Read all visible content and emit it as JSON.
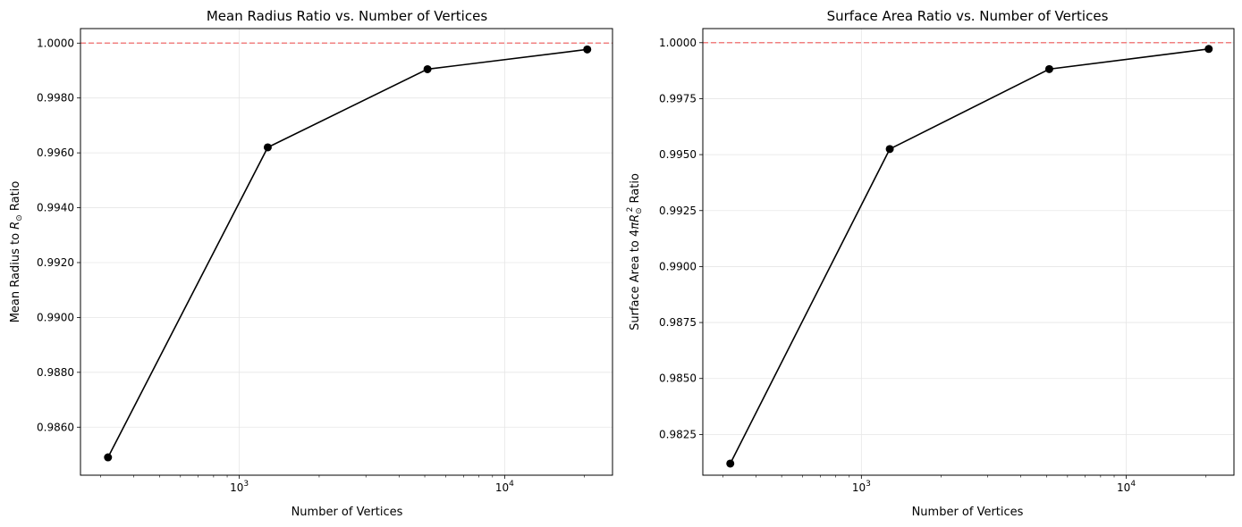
{
  "chart_data": [
    {
      "type": "line",
      "title": "Mean Radius Ratio vs. Number of Vertices",
      "xlabel": "Number of Vertices",
      "ylabel_prefix": "Mean Radius to ",
      "ylabel_math": "R",
      "ylabel_sub": "⊙",
      "ylabel_suffix": " Ratio",
      "x_scale": "log",
      "xlim": [
        252,
        25500
      ],
      "ylim": [
        0.98425,
        1.00053
      ],
      "x_ticks": [
        1000,
        10000
      ],
      "x_tick_labels": [
        {
          "base": "10",
          "exp": "3"
        },
        {
          "base": "10",
          "exp": "4"
        }
      ],
      "y_ticks": [
        0.986,
        0.988,
        0.99,
        0.992,
        0.994,
        0.996,
        0.998,
        1.0
      ],
      "y_tick_labels": [
        "0.9860",
        "0.9880",
        "0.9900",
        "0.9920",
        "0.9940",
        "0.9960",
        "0.9980",
        "1.0000"
      ],
      "grid": true,
      "reference_line": {
        "y": 1.0,
        "style": "dashed",
        "color": "#f08080"
      },
      "series": [
        {
          "x": [
            320,
            1280,
            5120,
            20480
          ],
          "y": [
            0.9849,
            0.9962,
            0.99905,
            0.99977
          ],
          "color": "#000000",
          "marker": "circle"
        }
      ]
    },
    {
      "type": "line",
      "title": "Surface Area Ratio vs. Number of Vertices",
      "xlabel": "Number of Vertices",
      "ylabel_prefix": "Surface Area to 4",
      "ylabel_math": "πR",
      "ylabel_sub": "⊙",
      "ylabel_sup": "2",
      "ylabel_suffix": " Ratio",
      "x_scale": "log",
      "xlim": [
        252,
        25500
      ],
      "ylim": [
        0.98068,
        1.00063
      ],
      "x_ticks": [
        1000,
        10000
      ],
      "x_tick_labels": [
        {
          "base": "10",
          "exp": "3"
        },
        {
          "base": "10",
          "exp": "4"
        }
      ],
      "y_ticks": [
        0.9825,
        0.985,
        0.9875,
        0.99,
        0.9925,
        0.995,
        0.9975,
        1.0
      ],
      "y_tick_labels": [
        "0.9825",
        "0.9850",
        "0.9875",
        "0.9900",
        "0.9925",
        "0.9950",
        "0.9975",
        "1.0000"
      ],
      "grid": true,
      "reference_line": {
        "y": 1.0,
        "style": "dashed",
        "color": "#f08080"
      },
      "series": [
        {
          "x": [
            320,
            1280,
            5120,
            20480
          ],
          "y": [
            0.9812,
            0.99525,
            0.99882,
            0.99972
          ],
          "color": "#000000",
          "marker": "circle"
        }
      ]
    }
  ]
}
